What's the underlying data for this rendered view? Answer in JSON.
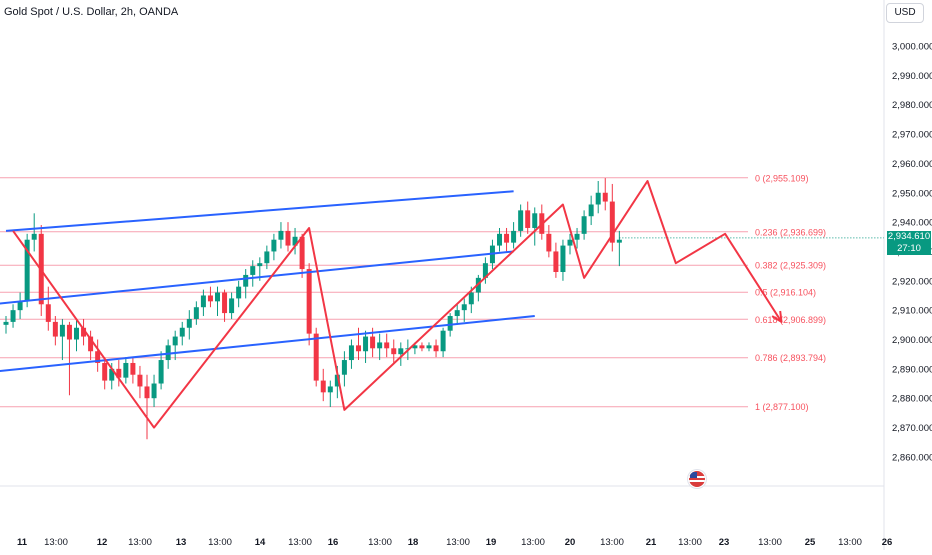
{
  "header": {
    "title": "Gold Spot / U.S. Dollar, 2h, OANDA",
    "currency": "USD"
  },
  "last_price": {
    "value": "2,934.610",
    "countdown": "27:10",
    "color": "#089981"
  },
  "colors": {
    "up": "#089981",
    "down": "#f23645",
    "channel": "#2962ff",
    "projection": "#f23645",
    "fib": "#f7a1b0",
    "fib_label": "#f7525f",
    "grid": "#f0f3fa",
    "axis_text": "#131722"
  },
  "chart_data": {
    "type": "candlestick",
    "y_axis": {
      "min": 2852,
      "max": 3010,
      "ticks": [
        3000,
        2990,
        2980,
        2970,
        2960,
        2950,
        2940,
        2930,
        2920,
        2910,
        2900,
        2890,
        2880,
        2870,
        2860
      ],
      "tick_labels": [
        "3,000.000",
        "2,990.000",
        "2,980.000",
        "2,970.000",
        "2,960.000",
        "2,950.000",
        "2,940.000",
        "2,930.000",
        "2,920.000",
        "2,910.000",
        "2,900.000",
        "2,890.000",
        "2,880.000",
        "2,870.000",
        "2,860.000"
      ]
    },
    "x_axis": {
      "labels": [
        "11",
        "13:00",
        "12",
        "13:00",
        "13",
        "13:00",
        "14",
        "13:00",
        "16",
        "13:00",
        "18",
        "13:00",
        "19",
        "13:00",
        "20",
        "13:00",
        "21",
        "13:00",
        "23",
        "13:00",
        "25",
        "13:00",
        "26"
      ],
      "bold": [
        "11",
        "12",
        "13",
        "14",
        "16",
        "18",
        "19",
        "20",
        "21",
        "23",
        "25",
        "26"
      ]
    },
    "candles": [
      [
        2905,
        2908,
        2902,
        2906
      ],
      [
        2906,
        2912,
        2904,
        2910
      ],
      [
        2910,
        2916,
        2907,
        2913
      ],
      [
        2913,
        2936,
        2911,
        2934
      ],
      [
        2934,
        2943,
        2930,
        2936
      ],
      [
        2936,
        2939,
        2908,
        2912
      ],
      [
        2912,
        2918,
        2903,
        2906
      ],
      [
        2906,
        2908,
        2898,
        2901
      ],
      [
        2901,
        2907,
        2893,
        2905
      ],
      [
        2905,
        2906,
        2881,
        2900
      ],
      [
        2900,
        2907,
        2896,
        2904
      ],
      [
        2904,
        2907,
        2898,
        2901
      ],
      [
        2901,
        2903,
        2893,
        2896
      ],
      [
        2896,
        2900,
        2889,
        2892
      ],
      [
        2892,
        2894,
        2883,
        2886
      ],
      [
        2886,
        2892,
        2883,
        2890
      ],
      [
        2890,
        2893,
        2884,
        2887
      ],
      [
        2887,
        2894,
        2885,
        2892
      ],
      [
        2892,
        2894,
        2885,
        2888
      ],
      [
        2888,
        2891,
        2880,
        2884
      ],
      [
        2884,
        2888,
        2866,
        2880
      ],
      [
        2880,
        2888,
        2877,
        2885
      ],
      [
        2885,
        2896,
        2883,
        2893
      ],
      [
        2893,
        2900,
        2890,
        2898
      ],
      [
        2898,
        2903,
        2893,
        2901
      ],
      [
        2901,
        2906,
        2898,
        2904
      ],
      [
        2904,
        2910,
        2900,
        2907
      ],
      [
        2907,
        2913,
        2905,
        2911
      ],
      [
        2911,
        2917,
        2908,
        2915
      ],
      [
        2915,
        2918,
        2911,
        2913
      ],
      [
        2913,
        2918,
        2908,
        2916
      ],
      [
        2916,
        2917,
        2906,
        2909
      ],
      [
        2909,
        2916,
        2907,
        2914
      ],
      [
        2914,
        2920,
        2911,
        2918
      ],
      [
        2918,
        2924,
        2914,
        2922
      ],
      [
        2922,
        2927,
        2918,
        2925
      ],
      [
        2925,
        2928,
        2920,
        2926
      ],
      [
        2926,
        2932,
        2924,
        2930
      ],
      [
        2930,
        2936,
        2927,
        2934
      ],
      [
        2934,
        2940,
        2931,
        2937
      ],
      [
        2937,
        2940,
        2930,
        2932
      ],
      [
        2932,
        2938,
        2929,
        2935
      ],
      [
        2935,
        2936,
        2921,
        2924
      ],
      [
        2924,
        2926,
        2898,
        2902
      ],
      [
        2902,
        2904,
        2884,
        2886
      ],
      [
        2886,
        2890,
        2879,
        2882
      ],
      [
        2882,
        2886,
        2877,
        2884
      ],
      [
        2884,
        2891,
        2880,
        2888
      ],
      [
        2888,
        2896,
        2884,
        2893
      ],
      [
        2893,
        2900,
        2890,
        2898
      ],
      [
        2898,
        2904,
        2893,
        2896
      ],
      [
        2896,
        2903,
        2892,
        2901
      ],
      [
        2901,
        2904,
        2894,
        2897
      ],
      [
        2897,
        2902,
        2893,
        2899
      ],
      [
        2899,
        2902,
        2894,
        2897
      ],
      [
        2897,
        2900,
        2892,
        2895
      ],
      [
        2895,
        2899,
        2891,
        2897
      ],
      [
        2897,
        2900,
        2893,
        2897
      ],
      [
        2897,
        2899,
        2895,
        2898
      ],
      [
        2898,
        2899,
        2896,
        2897
      ],
      [
        2897,
        2899,
        2896,
        2898
      ],
      [
        2898,
        2900,
        2894,
        2896
      ],
      [
        2896,
        2904,
        2894,
        2903
      ],
      [
        2903,
        2909,
        2901,
        2908
      ],
      [
        2908,
        2912,
        2905,
        2910
      ],
      [
        2910,
        2914,
        2906,
        2912
      ],
      [
        2912,
        2918,
        2909,
        2916
      ],
      [
        2916,
        2922,
        2913,
        2921
      ],
      [
        2921,
        2928,
        2919,
        2926
      ],
      [
        2926,
        2934,
        2924,
        2932
      ],
      [
        2932,
        2938,
        2930,
        2936
      ],
      [
        2936,
        2938,
        2930,
        2933
      ],
      [
        2933,
        2940,
        2931,
        2937
      ],
      [
        2937,
        2946,
        2935,
        2944
      ],
      [
        2944,
        2947,
        2936,
        2938
      ],
      [
        2938,
        2945,
        2932,
        2943
      ],
      [
        2943,
        2946,
        2934,
        2936
      ],
      [
        2936,
        2939,
        2928,
        2930
      ],
      [
        2930,
        2933,
        2921,
        2923
      ],
      [
        2923,
        2934,
        2920,
        2932
      ],
      [
        2932,
        2936,
        2929,
        2934
      ],
      [
        2934,
        2938,
        2931,
        2936
      ],
      [
        2936,
        2944,
        2934,
        2942
      ],
      [
        2942,
        2949,
        2939,
        2946
      ],
      [
        2946,
        2954,
        2943,
        2950
      ],
      [
        2950,
        2955,
        2944,
        2947
      ],
      [
        2947,
        2953,
        2930,
        2933
      ],
      [
        2933,
        2937,
        2925,
        2934
      ]
    ],
    "fib_levels": [
      {
        "ratio": "0",
        "price": 2955.109,
        "label": "0 (2,955.109)"
      },
      {
        "ratio": "0.236",
        "price": 2936.699,
        "label": "0.236 (2,936.699)"
      },
      {
        "ratio": "0.382",
        "price": 2925.309,
        "label": "0.382 (2,925.309)"
      },
      {
        "ratio": "0.5",
        "price": 2916.104,
        "label": "0.5 (2,916.104)"
      },
      {
        "ratio": "0.618",
        "price": 2906.899,
        "label": "0.618 (2,906.899)"
      },
      {
        "ratio": "0.786",
        "price": 2893.794,
        "label": "0.786 (2,893.794)"
      },
      {
        "ratio": "1",
        "price": 2877.1,
        "label": "1 (2,877.100)"
      }
    ],
    "channel_lines": [
      [
        [
          0,
          2937
        ],
        [
          72,
          2950.5
        ]
      ],
      [
        [
          -6,
          2911
        ],
        [
          72,
          2930
        ]
      ],
      [
        [
          -6,
          2888
        ],
        [
          75,
          2908
        ]
      ]
    ],
    "zigzag": [
      [
        1,
        2937
      ],
      [
        21,
        2870
      ],
      [
        43,
        2938
      ],
      [
        48,
        2876
      ],
      [
        79,
        2946
      ],
      [
        82,
        2921
      ],
      [
        91,
        2954
      ],
      [
        95,
        2926
      ],
      [
        102,
        2936
      ],
      [
        110,
        2906
      ]
    ]
  }
}
